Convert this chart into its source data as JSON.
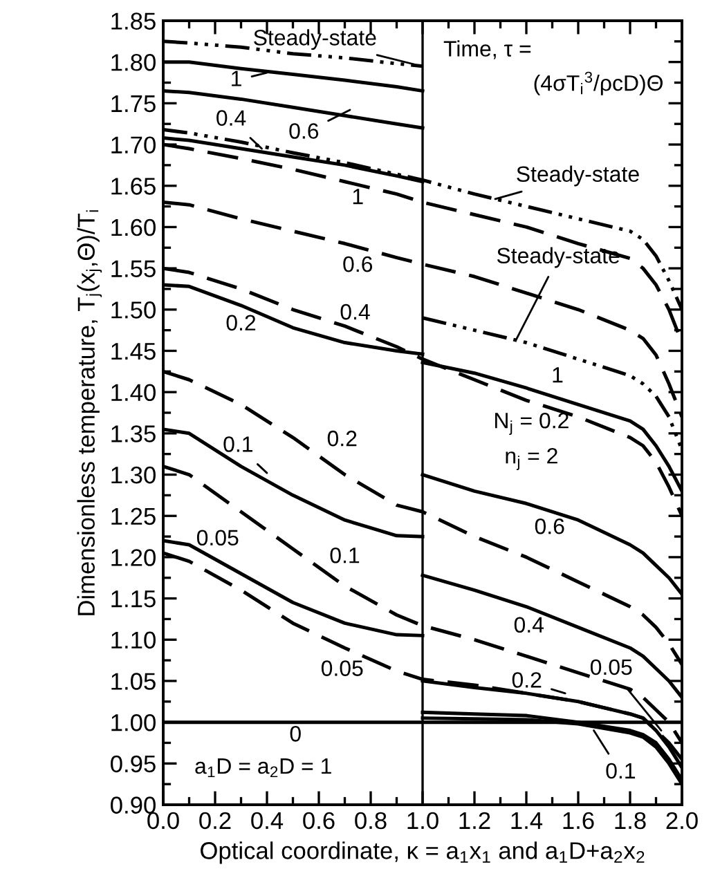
{
  "chart_data": {
    "type": "line",
    "xlabel": "Optical coordinate, κ = a$_{1}$x$_{1}$ and a$_{1}$D+a$_{2}$x$_{2}$",
    "ylabel": "Dimensionless temperature, T$_{j}$(x$_{j}$,Θ)/T$_{i}$",
    "xlim": [
      0.0,
      2.0
    ],
    "ylim": [
      0.9,
      1.85
    ],
    "xticks": [
      {
        "value": 0.0,
        "label": "0.0"
      },
      {
        "value": 0.1,
        "label": null
      },
      0.2,
      {
        "value": 0.3,
        "label": null
      },
      0.4,
      {
        "value": 0.5,
        "label": null
      },
      0.6,
      {
        "value": 0.7,
        "label": null
      },
      0.8,
      {
        "value": 0.9,
        "label": null
      },
      {
        "value": 1.0,
        "label": "1.0"
      },
      {
        "value": 1.1,
        "label": null
      },
      1.2,
      {
        "value": 1.3,
        "label": null
      },
      1.4,
      {
        "value": 1.5,
        "label": null
      },
      1.6,
      {
        "value": 1.7,
        "label": null
      },
      1.8,
      {
        "value": 1.9,
        "label": null
      },
      {
        "value": 2.0,
        "label": "2.0"
      }
    ],
    "yticks": [
      {
        "value": 0.9,
        "label": "0.90"
      },
      {
        "value": 0.925,
        "label": null
      },
      0.95,
      {
        "value": 0.975,
        "label": null
      },
      {
        "value": 1.0,
        "label": "1.00"
      },
      {
        "value": 1.025,
        "label": null
      },
      1.05,
      {
        "value": 1.075,
        "label": null
      },
      {
        "value": 1.1,
        "label": "1.10"
      },
      {
        "value": 1.125,
        "label": null
      },
      1.15,
      {
        "value": 1.175,
        "label": null
      },
      {
        "value": 1.2,
        "label": "1.20"
      },
      {
        "value": 1.225,
        "label": null
      },
      1.25,
      {
        "value": 1.275,
        "label": null
      },
      {
        "value": 1.3,
        "label": "1.30"
      },
      {
        "value": 1.325,
        "label": null
      },
      1.35,
      {
        "value": 1.375,
        "label": null
      },
      {
        "value": 1.4,
        "label": "1.40"
      },
      {
        "value": 1.425,
        "label": null
      },
      1.45,
      {
        "value": 1.475,
        "label": null
      },
      {
        "value": 1.5,
        "label": "1.50"
      },
      {
        "value": 1.525,
        "label": null
      },
      1.55,
      {
        "value": 1.575,
        "label": null
      },
      {
        "value": 1.6,
        "label": "1.60"
      },
      {
        "value": 1.625,
        "label": null
      },
      1.65,
      {
        "value": 1.675,
        "label": null
      },
      {
        "value": 1.7,
        "label": "1.70"
      },
      {
        "value": 1.725,
        "label": null
      },
      1.75,
      {
        "value": 1.775,
        "label": null
      },
      {
        "value": 1.8,
        "label": "1.80"
      },
      {
        "value": 1.825,
        "label": null
      },
      1.85
    ],
    "grid": false,
    "marker": "none",
    "ref_lines": [
      {
        "axis": "x",
        "value": 1.0,
        "color": "#000000",
        "line_style": "solid"
      }
    ],
    "series": [
      {
        "color": "#000000",
        "line_style": "dotted",
        "x": [
          0,
          0.1,
          0.3,
          0.5,
          0.7,
          0.9,
          1.0
        ],
        "values": [
          1.825,
          1.823,
          1.818,
          1.81,
          1.805,
          1.798,
          1.795
        ]
      },
      {
        "color": "#000000",
        "line_style": "dotted",
        "x": [
          1.0,
          1.2,
          1.4,
          1.6,
          1.8,
          1.85,
          1.9,
          1.95,
          2.0
        ],
        "values": [
          1.49,
          1.475,
          1.46,
          1.44,
          1.42,
          1.41,
          1.395,
          1.37,
          1.33
        ]
      },
      {
        "color": "#000000",
        "line_style": "solid",
        "x": [
          0,
          0.1,
          0.3,
          0.5,
          0.7,
          0.9,
          1.0
        ],
        "values": [
          1.8,
          1.8,
          1.792,
          1.785,
          1.778,
          1.77,
          1.765
        ]
      },
      {
        "color": "#000000",
        "line_style": "solid",
        "x": [
          1.0,
          1.2,
          1.4,
          1.6,
          1.8,
          1.85,
          1.9,
          1.95,
          2.0
        ],
        "values": [
          1.436,
          1.423,
          1.405,
          1.385,
          1.365,
          1.355,
          1.335,
          1.31,
          1.28
        ]
      },
      {
        "color": "#000000",
        "line_style": "solid",
        "x": [
          0,
          0.1,
          0.3,
          0.5,
          0.7,
          0.9,
          1.0
        ],
        "values": [
          1.765,
          1.763,
          1.755,
          1.745,
          1.735,
          1.725,
          1.72
        ]
      },
      {
        "color": "#000000",
        "line_style": "solid",
        "x": [
          1.0,
          1.2,
          1.4,
          1.6,
          1.8,
          1.85,
          1.9,
          1.95,
          2.0
        ],
        "values": [
          1.3,
          1.28,
          1.265,
          1.245,
          1.215,
          1.205,
          1.19,
          1.175,
          1.155
        ]
      },
      {
        "color": "#000000",
        "line_style": "solid",
        "x": [
          0,
          0.1,
          0.3,
          0.5,
          0.7,
          0.9,
          1.0
        ],
        "values": [
          1.708,
          1.705,
          1.695,
          1.685,
          1.675,
          1.662,
          1.655
        ]
      },
      {
        "color": "#000000",
        "line_style": "solid",
        "x": [
          1.0,
          1.2,
          1.4,
          1.6,
          1.8,
          1.85,
          1.9,
          1.95,
          2.0
        ],
        "values": [
          1.178,
          1.16,
          1.14,
          1.115,
          1.09,
          1.08,
          1.065,
          1.05,
          1.03
        ]
      },
      {
        "color": "#000000",
        "line_style": "solid",
        "x": [
          0,
          0.1,
          0.3,
          0.5,
          0.7,
          0.9,
          1.0
        ],
        "values": [
          1.53,
          1.528,
          1.505,
          1.478,
          1.46,
          1.45,
          1.446
        ]
      },
      {
        "color": "#000000",
        "line_style": "solid",
        "x": [
          1.0,
          1.2,
          1.4,
          1.6,
          1.8,
          1.85,
          1.9,
          1.95,
          2.0
        ],
        "values": [
          1.05,
          1.042,
          1.035,
          1.025,
          1.01,
          1.005,
          0.99,
          0.97,
          0.945
        ]
      },
      {
        "color": "#000000",
        "line_style": "solid",
        "x": [
          0,
          0.1,
          0.3,
          0.5,
          0.7,
          0.9,
          1.0
        ],
        "values": [
          1.355,
          1.35,
          1.31,
          1.275,
          1.245,
          1.226,
          1.225
        ]
      },
      {
        "color": "#000000",
        "line_style": "solid",
        "x": [
          1.0,
          1.2,
          1.4,
          1.6,
          1.8,
          1.85,
          1.9,
          1.95,
          2.0
        ],
        "values": [
          1.012,
          1.01,
          1.008,
          1.0,
          0.99,
          0.985,
          0.975,
          0.955,
          0.93
        ]
      },
      {
        "color": "#000000",
        "line_style": "solid",
        "x": [
          0,
          0.1,
          0.3,
          0.5,
          0.7,
          0.9,
          1.0
        ],
        "values": [
          1.22,
          1.215,
          1.18,
          1.145,
          1.12,
          1.106,
          1.105
        ]
      },
      {
        "color": "#000000",
        "line_style": "solid",
        "x": [
          1.0,
          1.2,
          1.4,
          1.6,
          1.8,
          1.85,
          1.9,
          1.95,
          2.0
        ],
        "values": [
          1.005,
          1.004,
          1.003,
          0.998,
          0.987,
          0.982,
          0.97,
          0.95,
          0.925
        ]
      },
      {
        "color": "#000000",
        "line_style": "solid",
        "x": [
          0,
          2.0
        ],
        "values": [
          1.0,
          1.0
        ]
      },
      {
        "color": "#000000",
        "line_style": "dotted",
        "x": [
          0,
          0.1,
          0.3,
          0.5,
          0.7,
          0.9,
          1.0,
          1.2,
          1.4,
          1.6,
          1.8,
          1.85,
          1.9,
          1.95,
          2.0
        ],
        "values": [
          1.718,
          1.714,
          1.703,
          1.69,
          1.678,
          1.664,
          1.657,
          1.64,
          1.625,
          1.61,
          1.595,
          1.585,
          1.565,
          1.535,
          1.5
        ]
      },
      {
        "color": "#000000",
        "line_style": "dashed",
        "x": [
          0,
          0.1,
          0.3,
          0.5,
          0.7,
          0.9,
          1.0,
          1.2,
          1.4,
          1.6,
          1.8,
          1.85,
          1.9,
          1.95,
          2.0
        ],
        "values": [
          1.7,
          1.695,
          1.683,
          1.67,
          1.655,
          1.64,
          1.63,
          1.615,
          1.6,
          1.58,
          1.562,
          1.55,
          1.53,
          1.5,
          1.46
        ]
      },
      {
        "color": "#000000",
        "line_style": "dashed",
        "x": [
          0,
          0.1,
          0.3,
          0.5,
          0.7,
          0.9,
          1.0,
          1.2,
          1.4,
          1.6,
          1.8,
          1.85,
          1.9,
          1.95,
          2.0
        ],
        "values": [
          1.63,
          1.627,
          1.61,
          1.595,
          1.58,
          1.563,
          1.555,
          1.54,
          1.52,
          1.5,
          1.475,
          1.465,
          1.445,
          1.41,
          1.37
        ]
      },
      {
        "color": "#000000",
        "line_style": "dashed",
        "x": [
          0,
          0.1,
          0.3,
          0.5,
          0.7,
          0.9,
          1.0,
          1.2,
          1.4,
          1.6,
          1.8,
          1.85,
          1.9,
          1.95,
          2.0
        ],
        "values": [
          1.55,
          1.545,
          1.525,
          1.5,
          1.48,
          1.455,
          1.44,
          1.415,
          1.39,
          1.37,
          1.345,
          1.335,
          1.315,
          1.285,
          1.25
        ]
      },
      {
        "color": "#000000",
        "line_style": "dashed",
        "x": [
          0,
          0.1,
          0.3,
          0.5,
          0.7,
          0.9,
          1.0,
          1.2,
          1.4,
          1.6,
          1.8,
          1.85,
          1.9,
          1.95,
          2.0
        ],
        "values": [
          1.425,
          1.415,
          1.385,
          1.345,
          1.3,
          1.263,
          1.255,
          1.225,
          1.2,
          1.17,
          1.14,
          1.13,
          1.115,
          1.095,
          1.07
        ]
      },
      {
        "color": "#000000",
        "line_style": "dashed",
        "x": [
          0,
          0.1,
          0.3,
          0.5,
          0.7,
          0.9,
          1.0,
          1.2,
          1.4,
          1.6,
          1.8,
          1.85,
          1.9,
          1.95,
          2.0
        ],
        "values": [
          1.31,
          1.3,
          1.255,
          1.21,
          1.165,
          1.13,
          1.117,
          1.1,
          1.08,
          1.06,
          1.04,
          1.03,
          1.015,
          1.0,
          0.975
        ]
      },
      {
        "color": "#000000",
        "line_style": "dashed",
        "x": [
          0,
          0.1,
          0.3,
          0.5,
          0.7,
          0.9,
          1.0,
          1.2,
          1.4,
          1.6,
          1.8,
          1.85,
          1.9,
          1.95,
          2.0
        ],
        "values": [
          1.205,
          1.195,
          1.16,
          1.12,
          1.09,
          1.062,
          1.052,
          1.045,
          1.035,
          1.025,
          1.01,
          1.005,
          0.99,
          0.975,
          0.955
        ]
      }
    ],
    "annotations": [
      {
        "text": "Steady-state",
        "x": 0.97,
        "y": 1.797
      },
      {
        "text": "1",
        "x": 0.4,
        "y": 1.787
      },
      {
        "text": "0.4",
        "x": 0.38,
        "y": 1.695
      },
      {
        "text": "0.6",
        "x": 0.72,
        "y": 1.742
      },
      {
        "text": "1",
        "x": 0.75,
        "y": 1.651
      },
      {
        "text": "0.6",
        "x": 0.75,
        "y": 1.576
      },
      {
        "text": "0.4",
        "x": 0.74,
        "y": 1.474
      },
      {
        "text": "0.2",
        "x": 0.3,
        "y": 1.505
      },
      {
        "text": "0.1",
        "x": 0.4,
        "y": 1.302
      },
      {
        "text": "0.2",
        "x": 0.69,
        "y": 1.302
      },
      {
        "text": "0.05",
        "x": 0.21,
        "y": 1.198
      },
      {
        "text": "0.1",
        "x": 0.7,
        "y": 1.165
      },
      {
        "text": "0.05",
        "x": 0.69,
        "y": 1.091
      },
      {
        "text": "0",
        "x": 0.51,
        "y": 1.0
      },
      {
        "text": "Steady-state",
        "x": 1.28,
        "y": 1.634
      },
      {
        "text": "Steady-state",
        "x": 1.36,
        "y": 1.463
      },
      {
        "text": "1",
        "x": 1.52,
        "y": 1.393
      },
      {
        "text": "0.6",
        "x": 1.49,
        "y": 1.256
      },
      {
        "text": "0.4",
        "x": 1.41,
        "y": 1.139
      },
      {
        "text": "0.2",
        "x": 1.55,
        "y": 1.035
      },
      {
        "text": "0.05",
        "x": 1.92,
        "y": 0.99
      },
      {
        "text": "0.1",
        "x": 1.66,
        "y": 0.99
      },
      "Time, τ =",
      "(4σT$_{i}$$^{3}$/ρcD)Θ",
      "N$_{j}$ = 0.2",
      "n$_{j}$ = 2",
      "a$_{1}$D = a$_{2}$D = 1"
    ]
  }
}
